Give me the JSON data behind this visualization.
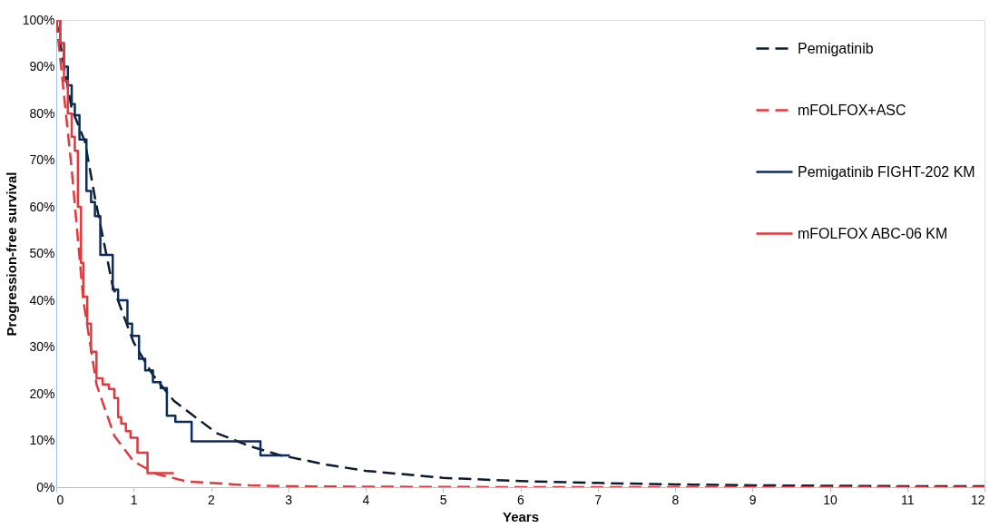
{
  "chart_data": {
    "type": "line",
    "xlabel": "Years",
    "ylabel": "Progression-free survival",
    "xlim": [
      0,
      12
    ],
    "xticks": [
      0,
      1,
      2,
      3,
      4,
      5,
      6,
      7,
      8,
      9,
      10,
      11,
      12
    ],
    "ylim": [
      0,
      100
    ],
    "yticks": [
      {
        "value": 0,
        "label": "0%"
      },
      {
        "value": 10,
        "label": "10%"
      },
      {
        "value": 20,
        "label": "20%"
      },
      {
        "value": 30,
        "label": "30%"
      },
      {
        "value": 40,
        "label": "40%"
      },
      {
        "value": 50,
        "label": "50%"
      },
      {
        "value": 60,
        "label": "60%"
      },
      {
        "value": 70,
        "label": "70%"
      },
      {
        "value": 80,
        "label": "80%"
      },
      {
        "value": 90,
        "label": "90%"
      },
      {
        "value": 100,
        "label": "100%"
      }
    ],
    "grid": false,
    "legend": "top right",
    "series": [
      {
        "name": "Pemigatinib",
        "type": "line",
        "line_style": "dashed",
        "color": "#0d1b2e",
        "x": [
          0,
          0.1,
          0.2,
          0.37,
          0.5,
          0.73,
          1.0,
          1.25,
          1.52,
          2.07,
          2.5,
          2.88,
          3.5,
          4,
          5,
          6,
          7,
          8,
          9,
          10,
          11,
          12
        ],
        "values": [
          100,
          90,
          81,
          74,
          62,
          43,
          31,
          24,
          18.5,
          11.6,
          8.8,
          6.9,
          4.8,
          3.5,
          2,
          1.3,
          0.9,
          0.6,
          0.4,
          0.3,
          0.2,
          0.2
        ]
      },
      {
        "name": "mFOLFOX+ASC",
        "type": "line",
        "line_style": "dashed",
        "color": "#e0393e",
        "x": [
          0,
          0.1,
          0.2,
          0.35,
          0.52,
          0.75,
          1.0,
          1.3,
          1.7,
          2.5,
          3,
          4,
          6,
          8,
          10,
          12
        ],
        "values": [
          100,
          84,
          68,
          40,
          22,
          11,
          5.5,
          2.8,
          1.2,
          0.4,
          0.2,
          0.1,
          0,
          0,
          0,
          0
        ]
      },
      {
        "name": "Pemigatinib FIGHT-202 KM",
        "type": "step",
        "line_style": "solid",
        "color": "#0b2d5b",
        "x": [
          0,
          0.05,
          0.1,
          0.15,
          0.2,
          0.24,
          0.3,
          0.39,
          0.45,
          0.5,
          0.57,
          0.73,
          0.8,
          0.92,
          0.98,
          1.07,
          1.15,
          1.25,
          1.35,
          1.43,
          1.54,
          1.75,
          2.64,
          3.02
        ],
        "values": [
          100,
          95,
          90,
          86,
          82,
          79.6,
          74.4,
          63.4,
          61,
          58,
          49.7,
          42.3,
          40,
          35,
          32.4,
          27.5,
          25,
          22.5,
          21.2,
          15.3,
          14,
          9.8,
          6.8,
          6.8
        ]
      },
      {
        "name": "mFOLFOX ABC-06 KM",
        "type": "step",
        "line_style": "solid",
        "color": "#e03a3e",
        "x": [
          0,
          0.05,
          0.1,
          0.15,
          0.2,
          0.24,
          0.28,
          0.32,
          0.35,
          0.4,
          0.45,
          0.52,
          0.6,
          0.68,
          0.75,
          0.8,
          0.84,
          0.9,
          0.96,
          1.05,
          1.18,
          1.52
        ],
        "values": [
          100,
          95,
          87,
          80,
          75,
          72,
          60,
          48,
          40.8,
          35,
          29,
          23.3,
          22,
          21,
          19.1,
          15,
          13.6,
          12,
          10.6,
          7.4,
          3,
          3
        ]
      }
    ]
  }
}
